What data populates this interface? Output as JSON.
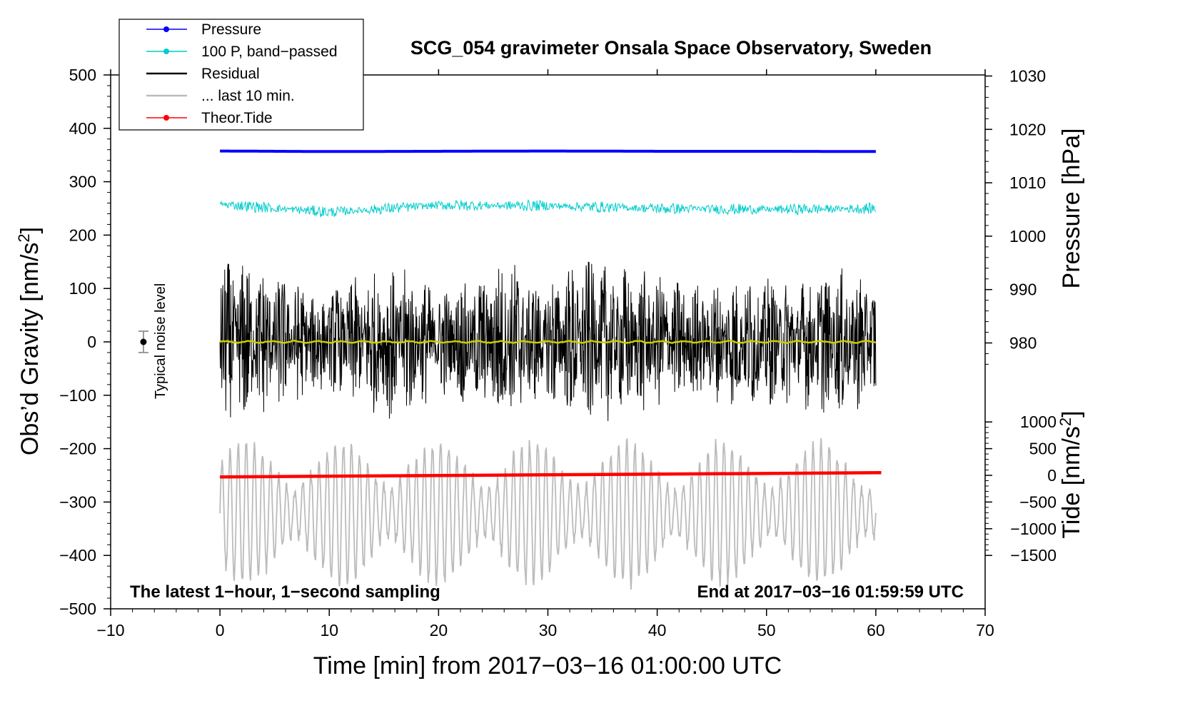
{
  "chart_data": {
    "type": "line",
    "title": "SCG_054 gravimeter Onsala Space Observatory, Sweden",
    "xlabel": "Time [min] from 2017−03−16 01:00:00 UTC",
    "ylabel_left_main": "Obs’d Gravity [nm/s",
    "ylabel_left_sup": "2",
    "ylabel_left_close": "]",
    "ylabel_right_pressure": "Pressure [hPa]",
    "ylabel_right_tide_main": "Tide [nm/s",
    "ylabel_right_tide_sup": "2",
    "ylabel_right_tide_close": "]",
    "xlim": [
      -10,
      70
    ],
    "ylim_left": [
      -500,
      500
    ],
    "x_ticks": [
      {
        "value": -10,
        "label": "−10"
      },
      {
        "value": 0,
        "label": "0"
      },
      {
        "value": 10,
        "label": "10"
      },
      {
        "value": 20,
        "label": "20"
      },
      {
        "value": 30,
        "label": "30"
      },
      {
        "value": 40,
        "label": "40"
      },
      {
        "value": 50,
        "label": "50"
      },
      {
        "value": 60,
        "label": "60"
      },
      {
        "value": 70,
        "label": "70"
      }
    ],
    "y_ticks_left": [
      {
        "value": 500,
        "label": "500"
      },
      {
        "value": 400,
        "label": "400"
      },
      {
        "value": 300,
        "label": "300"
      },
      {
        "value": 200,
        "label": "200"
      },
      {
        "value": 100,
        "label": "100"
      },
      {
        "value": 0,
        "label": "0"
      },
      {
        "value": -100,
        "label": "−100"
      },
      {
        "value": -200,
        "label": "−200"
      },
      {
        "value": -300,
        "label": "−300"
      },
      {
        "value": -400,
        "label": "−400"
      },
      {
        "value": -500,
        "label": "−500"
      }
    ],
    "pressure_axis": {
      "scale": "left_value = 358 + 10*(hPa - 1016)",
      "ticks": [
        {
          "value": 980,
          "label": "980"
        },
        {
          "value": 990,
          "label": "990"
        },
        {
          "value": 1000,
          "label": "1000"
        },
        {
          "value": 1010,
          "label": "1010"
        },
        {
          "value": 1020,
          "label": "1020"
        },
        {
          "value": 1030,
          "label": "1030"
        }
      ]
    },
    "tide_axis": {
      "scale": "left_value = -250 + tide/10",
      "ticks": [
        {
          "value": 1000,
          "label": "1000"
        },
        {
          "value": 500,
          "label": "500"
        },
        {
          "value": 0,
          "label": "0"
        },
        {
          "value": -500,
          "label": "−500"
        },
        {
          "value": -1000,
          "label": "−1000"
        },
        {
          "value": -1500,
          "label": "−1500"
        }
      ]
    },
    "legend": [
      {
        "label": "Pressure",
        "color": "#0000ff",
        "marker": true
      },
      {
        "label": "100 P, band−passed",
        "color": "#00cccc",
        "marker": true
      },
      {
        "label": "Residual",
        "color": "#000000",
        "marker": false
      },
      {
        "label": "... last 10 min.",
        "color": "#bbbbbb",
        "marker": false
      },
      {
        "label": "Theor.Tide",
        "color": "#ff0000",
        "marker": true
      }
    ],
    "series": [
      {
        "name": "Pressure",
        "color": "#0000ff",
        "x_range": [
          0,
          60
        ],
        "x": [
          0,
          10,
          20,
          30,
          40,
          50,
          60
        ],
        "y": [
          357.5,
          356.5,
          357,
          357.5,
          357,
          357,
          356.5
        ]
      },
      {
        "name": "100 P, band−passed",
        "color": "#00cccc",
        "x_range": [
          0,
          60
        ],
        "baseline": 250,
        "amplitude_approx": 15,
        "x": [
          0,
          10,
          20,
          30,
          40,
          50,
          60
        ],
        "y": [
          258,
          243,
          256,
          255,
          250,
          248,
          250
        ]
      },
      {
        "name": "Residual",
        "color": "#000000",
        "x_range": [
          0,
          60
        ],
        "baseline": 0,
        "amplitude_max_approx": 170,
        "envelope_x": [
          0,
          2,
          5,
          8,
          10,
          14,
          17,
          20,
          24,
          26.5,
          29,
          33,
          36,
          40,
          44,
          48,
          52,
          56,
          60
        ],
        "envelope_y": [
          150,
          160,
          130,
          110,
          100,
          140,
          150,
          100,
          130,
          170,
          110,
          160,
          150,
          130,
          110,
          130,
          120,
          140,
          130
        ]
      },
      {
        "name": "Residual, smoothed",
        "color": "#cccc00",
        "x_range": [
          0,
          60
        ],
        "y_approx": 0
      },
      {
        "name": "... last 10 min.",
        "color": "#bbbbbb",
        "x_range": [
          0,
          60
        ],
        "baseline": -320,
        "amplitude_max_approx": 130
      },
      {
        "name": "Theor.Tide",
        "color": "#ff0000",
        "x_range": [
          0,
          60.5
        ],
        "x": [
          0,
          60.5
        ],
        "y": [
          -253,
          -245
        ]
      }
    ],
    "noise_marker": {
      "x": -7,
      "y": 0,
      "error": 20,
      "label": "Typical noise level"
    },
    "annotations": {
      "left": "The latest 1−hour, 1−second sampling",
      "right": "End at 2017−03−16 01:59:59 UTC"
    }
  }
}
